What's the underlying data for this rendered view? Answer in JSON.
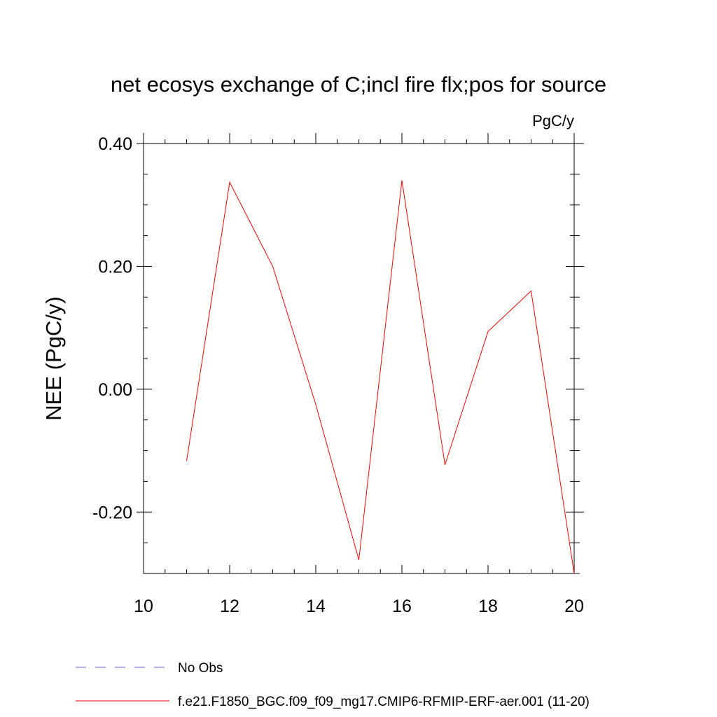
{
  "chart_data": {
    "type": "line",
    "title": "net ecosys exchange of C;incl fire flx;pos for source",
    "units_label": "PgC/y",
    "ylabel": "NEE  (PgC/y)",
    "xlabel": "",
    "xlim": [
      10,
      20
    ],
    "ylim": [
      -0.3,
      0.4
    ],
    "x_ticks": [
      10,
      12,
      14,
      16,
      18,
      20
    ],
    "x_tick_labels": [
      "10",
      "12",
      "14",
      "16",
      "18",
      "20"
    ],
    "y_ticks": [
      -0.2,
      0.0,
      0.2,
      0.4
    ],
    "y_tick_labels": [
      "-0.20",
      "0.00",
      "0.20",
      "0.40"
    ],
    "x": [
      11,
      12,
      13,
      14,
      15,
      16,
      17,
      18,
      19,
      20
    ],
    "series": [
      {
        "name": "f.e21.F1850_BGC.f09_f09_mg17.CMIP6-RFMIP-ERF-aer.001 (11-20)",
        "color": "#ff0000",
        "style": "solid",
        "values": [
          -0.117,
          0.337,
          0.2,
          -0.025,
          -0.278,
          0.34,
          -0.123,
          0.094,
          0.16,
          -0.3
        ]
      }
    ],
    "legend": [
      {
        "label": "No Obs",
        "color": "#6a5acd",
        "style": "dashed"
      },
      {
        "label": "f.e21.F1850_BGC.f09_f09_mg17.CMIP6-RFMIP-ERF-aer.001 (11-20)",
        "color": "#ff0000",
        "style": "solid"
      }
    ],
    "legend_position": "bottom-left",
    "grid": false
  }
}
